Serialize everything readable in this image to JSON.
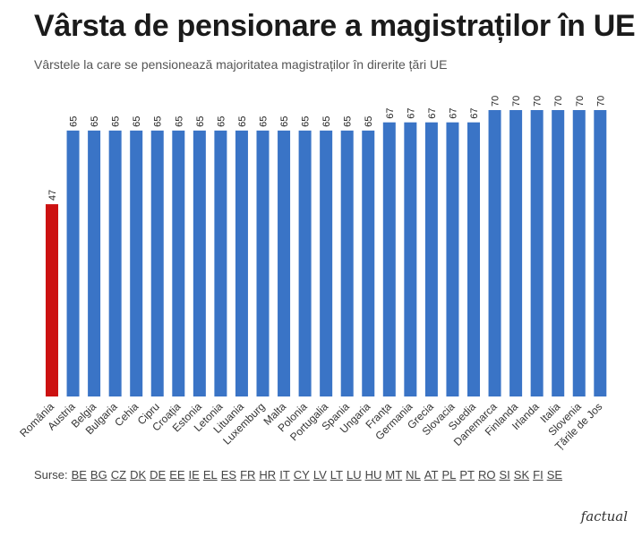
{
  "title": "Vârsta de pensionare a magistraților în UE",
  "subtitle": "Vârstele la care se pensionează majoritatea magistraților în direrite țări UE",
  "sources_prefix": "Surse:",
  "sources": [
    "BE",
    "BG",
    "CZ",
    "DK",
    "DE",
    "EE",
    "IE",
    "EL",
    "ES",
    "FR",
    "HR",
    "IT",
    "CY",
    "LV",
    "LT",
    "LU",
    "HU",
    "MT",
    "NL",
    "AT",
    "PL",
    "PT",
    "RO",
    "SI",
    "SK",
    "FI",
    "SE"
  ],
  "logo": "factual",
  "colors": {
    "default_bar": "#3a74c6",
    "highlight_bar": "#cc1111"
  },
  "chart_data": {
    "type": "bar",
    "categories": [
      "România",
      "Austria",
      "Belgia",
      "Bulgaria",
      "Cehia",
      "Cipru",
      "Croația",
      "Estonia",
      "Letonia",
      "Lituania",
      "Luxemburg",
      "Malta",
      "Polonia",
      "Portugalia",
      "Spania",
      "Ungaria",
      "Franța",
      "Germania",
      "Grecia",
      "Slovacia",
      "Suedia",
      "Danemarca",
      "Finlanda",
      "Irlanda",
      "Italia",
      "Slovenia",
      "Țările de Jos"
    ],
    "values": [
      47,
      65,
      65,
      65,
      65,
      65,
      65,
      65,
      65,
      65,
      65,
      65,
      65,
      65,
      65,
      65,
      67,
      67,
      67,
      67,
      67,
      70,
      70,
      70,
      70,
      70,
      70
    ],
    "highlight": "România",
    "ylim": [
      0,
      70
    ],
    "grid": false,
    "title": "Vârsta de pensionare a magistraților în UE",
    "subtitle": "Vârstele la care se pensionează majoritatea magistraților în direrite țări UE",
    "xlabel": "",
    "ylabel": ""
  }
}
